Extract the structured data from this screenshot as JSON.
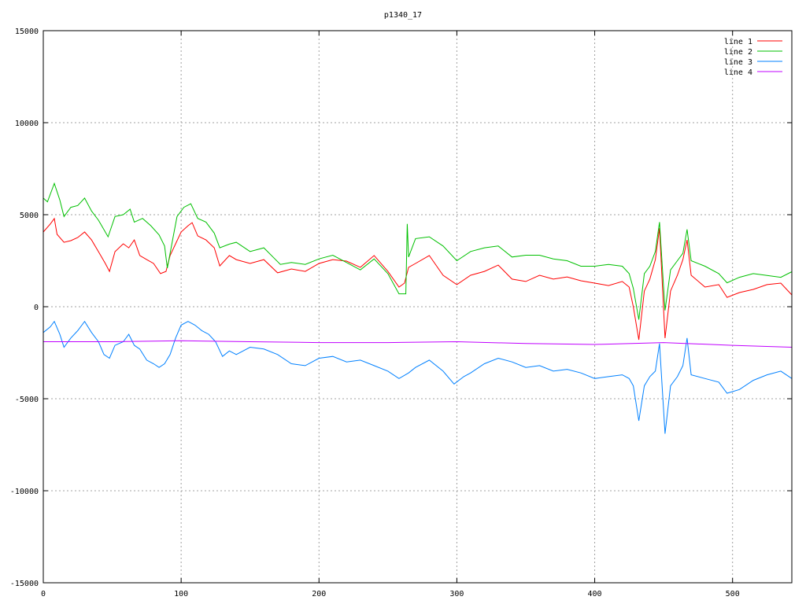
{
  "chart_data": {
    "type": "line",
    "title": "p1340_17",
    "xlabel": "",
    "ylabel": "",
    "xlim": [
      0,
      543
    ],
    "ylim": [
      -15000,
      15000
    ],
    "grid": true,
    "legend_position": "top-right",
    "x_ticks": [
      "0",
      "100",
      "200",
      "300",
      "400",
      "500"
    ],
    "y_ticks": [
      "-15000",
      "-10000",
      "-5000",
      "0",
      "5000",
      "10000",
      "15000"
    ],
    "series": [
      {
        "name": "line 1",
        "color": "#ff0000",
        "points": [
          [
            0,
            4060
          ],
          [
            5,
            4490
          ],
          [
            8,
            4790
          ],
          [
            10,
            3930
          ],
          [
            15,
            3500
          ],
          [
            20,
            3590
          ],
          [
            25,
            3760
          ],
          [
            30,
            4060
          ],
          [
            35,
            3630
          ],
          [
            40,
            2990
          ],
          [
            45,
            2350
          ],
          [
            48,
            1920
          ],
          [
            52,
            2990
          ],
          [
            58,
            3420
          ],
          [
            62,
            3200
          ],
          [
            66,
            3630
          ],
          [
            70,
            2780
          ],
          [
            75,
            2560
          ],
          [
            80,
            2350
          ],
          [
            85,
            1800
          ],
          [
            89,
            1920
          ],
          [
            92,
            2780
          ],
          [
            96,
            3420
          ],
          [
            100,
            4060
          ],
          [
            105,
            4400
          ],
          [
            108,
            4570
          ],
          [
            112,
            3850
          ],
          [
            118,
            3630
          ],
          [
            124,
            3200
          ],
          [
            128,
            2220
          ],
          [
            135,
            2780
          ],
          [
            140,
            2560
          ],
          [
            150,
            2350
          ],
          [
            160,
            2560
          ],
          [
            170,
            1840
          ],
          [
            180,
            2050
          ],
          [
            190,
            1920
          ],
          [
            200,
            2350
          ],
          [
            210,
            2560
          ],
          [
            220,
            2480
          ],
          [
            230,
            2140
          ],
          [
            240,
            2780
          ],
          [
            250,
            1920
          ],
          [
            258,
            1070
          ],
          [
            262,
            1280
          ],
          [
            265,
            2140
          ],
          [
            270,
            2350
          ],
          [
            280,
            2780
          ],
          [
            290,
            1710
          ],
          [
            300,
            1200
          ],
          [
            310,
            1710
          ],
          [
            320,
            1920
          ],
          [
            330,
            2260
          ],
          [
            340,
            1500
          ],
          [
            350,
            1370
          ],
          [
            360,
            1710
          ],
          [
            370,
            1500
          ],
          [
            380,
            1620
          ],
          [
            390,
            1410
          ],
          [
            400,
            1280
          ],
          [
            410,
            1150
          ],
          [
            420,
            1370
          ],
          [
            425,
            1070
          ],
          [
            428,
            0
          ],
          [
            432,
            -1800
          ],
          [
            436,
            850
          ],
          [
            440,
            1500
          ],
          [
            444,
            2560
          ],
          [
            447,
            4270
          ],
          [
            451,
            -1710
          ],
          [
            455,
            850
          ],
          [
            460,
            1710
          ],
          [
            464,
            2560
          ],
          [
            467,
            3630
          ],
          [
            470,
            1710
          ],
          [
            480,
            1070
          ],
          [
            490,
            1200
          ],
          [
            496,
            510
          ],
          [
            505,
            770
          ],
          [
            515,
            940
          ],
          [
            525,
            1200
          ],
          [
            535,
            1280
          ],
          [
            543,
            640
          ]
        ]
      },
      {
        "name": "line 2",
        "color": "#00c000",
        "points": [
          [
            0,
            5900
          ],
          [
            3,
            5700
          ],
          [
            8,
            6700
          ],
          [
            12,
            5800
          ],
          [
            15,
            4900
          ],
          [
            20,
            5400
          ],
          [
            25,
            5500
          ],
          [
            30,
            5900
          ],
          [
            35,
            5200
          ],
          [
            40,
            4700
          ],
          [
            47,
            3800
          ],
          [
            52,
            4900
          ],
          [
            58,
            5000
          ],
          [
            63,
            5300
          ],
          [
            66,
            4600
          ],
          [
            72,
            4800
          ],
          [
            78,
            4400
          ],
          [
            84,
            3900
          ],
          [
            88,
            3300
          ],
          [
            90,
            2100
          ],
          [
            94,
            3700
          ],
          [
            97,
            4900
          ],
          [
            102,
            5400
          ],
          [
            107,
            5600
          ],
          [
            112,
            4800
          ],
          [
            118,
            4600
          ],
          [
            124,
            4000
          ],
          [
            128,
            3200
          ],
          [
            135,
            3400
          ],
          [
            140,
            3500
          ],
          [
            150,
            3000
          ],
          [
            160,
            3200
          ],
          [
            168,
            2600
          ],
          [
            172,
            2300
          ],
          [
            180,
            2400
          ],
          [
            190,
            2300
          ],
          [
            200,
            2600
          ],
          [
            210,
            2800
          ],
          [
            220,
            2400
          ],
          [
            230,
            2000
          ],
          [
            240,
            2600
          ],
          [
            250,
            1800
          ],
          [
            258,
            700
          ],
          [
            263,
            700
          ],
          [
            264,
            4500
          ],
          [
            265,
            2700
          ],
          [
            270,
            3700
          ],
          [
            280,
            3800
          ],
          [
            290,
            3300
          ],
          [
            300,
            2500
          ],
          [
            310,
            3000
          ],
          [
            320,
            3200
          ],
          [
            330,
            3300
          ],
          [
            340,
            2700
          ],
          [
            350,
            2800
          ],
          [
            360,
            2800
          ],
          [
            370,
            2600
          ],
          [
            380,
            2500
          ],
          [
            390,
            2200
          ],
          [
            400,
            2200
          ],
          [
            410,
            2300
          ],
          [
            420,
            2200
          ],
          [
            425,
            1800
          ],
          [
            428,
            1000
          ],
          [
            432,
            -700
          ],
          [
            436,
            1800
          ],
          [
            440,
            2200
          ],
          [
            444,
            3000
          ],
          [
            447,
            4600
          ],
          [
            451,
            -200
          ],
          [
            455,
            2000
          ],
          [
            460,
            2500
          ],
          [
            464,
            2900
          ],
          [
            467,
            4200
          ],
          [
            470,
            2500
          ],
          [
            480,
            2200
          ],
          [
            490,
            1800
          ],
          [
            496,
            1300
          ],
          [
            505,
            1600
          ],
          [
            515,
            1800
          ],
          [
            525,
            1700
          ],
          [
            535,
            1600
          ],
          [
            543,
            1900
          ]
        ]
      },
      {
        "name": "line 3",
        "color": "#0080ff",
        "points": [
          [
            0,
            -1400
          ],
          [
            5,
            -1100
          ],
          [
            8,
            -800
          ],
          [
            12,
            -1500
          ],
          [
            15,
            -2200
          ],
          [
            20,
            -1700
          ],
          [
            25,
            -1300
          ],
          [
            30,
            -800
          ],
          [
            35,
            -1400
          ],
          [
            40,
            -1900
          ],
          [
            44,
            -2600
          ],
          [
            48,
            -2800
          ],
          [
            52,
            -2100
          ],
          [
            58,
            -1900
          ],
          [
            62,
            -1500
          ],
          [
            66,
            -2100
          ],
          [
            70,
            -2300
          ],
          [
            75,
            -2900
          ],
          [
            80,
            -3100
          ],
          [
            84,
            -3300
          ],
          [
            88,
            -3100
          ],
          [
            92,
            -2600
          ],
          [
            96,
            -1700
          ],
          [
            100,
            -1000
          ],
          [
            105,
            -800
          ],
          [
            110,
            -1000
          ],
          [
            115,
            -1300
          ],
          [
            120,
            -1500
          ],
          [
            125,
            -1900
          ],
          [
            130,
            -2700
          ],
          [
            135,
            -2400
          ],
          [
            140,
            -2600
          ],
          [
            150,
            -2200
          ],
          [
            160,
            -2300
          ],
          [
            170,
            -2600
          ],
          [
            180,
            -3100
          ],
          [
            190,
            -3200
          ],
          [
            200,
            -2800
          ],
          [
            210,
            -2700
          ],
          [
            220,
            -3000
          ],
          [
            230,
            -2900
          ],
          [
            240,
            -3200
          ],
          [
            250,
            -3500
          ],
          [
            258,
            -3900
          ],
          [
            265,
            -3600
          ],
          [
            270,
            -3300
          ],
          [
            280,
            -2900
          ],
          [
            290,
            -3500
          ],
          [
            298,
            -4200
          ],
          [
            305,
            -3800
          ],
          [
            310,
            -3600
          ],
          [
            320,
            -3100
          ],
          [
            330,
            -2800
          ],
          [
            340,
            -3000
          ],
          [
            350,
            -3300
          ],
          [
            360,
            -3200
          ],
          [
            370,
            -3500
          ],
          [
            380,
            -3400
          ],
          [
            390,
            -3600
          ],
          [
            400,
            -3900
          ],
          [
            410,
            -3800
          ],
          [
            420,
            -3700
          ],
          [
            425,
            -3900
          ],
          [
            428,
            -4300
          ],
          [
            432,
            -6200
          ],
          [
            436,
            -4300
          ],
          [
            440,
            -3800
          ],
          [
            444,
            -3500
          ],
          [
            447,
            -2000
          ],
          [
            451,
            -6900
          ],
          [
            455,
            -4300
          ],
          [
            460,
            -3800
          ],
          [
            464,
            -3200
          ],
          [
            467,
            -1700
          ],
          [
            470,
            -3700
          ],
          [
            480,
            -3900
          ],
          [
            490,
            -4100
          ],
          [
            496,
            -4700
          ],
          [
            505,
            -4500
          ],
          [
            515,
            -4000
          ],
          [
            525,
            -3700
          ],
          [
            535,
            -3500
          ],
          [
            543,
            -3900
          ]
        ]
      },
      {
        "name": "line 4",
        "color": "#c000ff",
        "points": [
          [
            0,
            -1900
          ],
          [
            50,
            -1900
          ],
          [
            100,
            -1850
          ],
          [
            150,
            -1900
          ],
          [
            200,
            -1950
          ],
          [
            250,
            -1950
          ],
          [
            300,
            -1900
          ],
          [
            350,
            -2000
          ],
          [
            400,
            -2050
          ],
          [
            450,
            -1950
          ],
          [
            500,
            -2100
          ],
          [
            543,
            -2200
          ]
        ]
      }
    ]
  }
}
